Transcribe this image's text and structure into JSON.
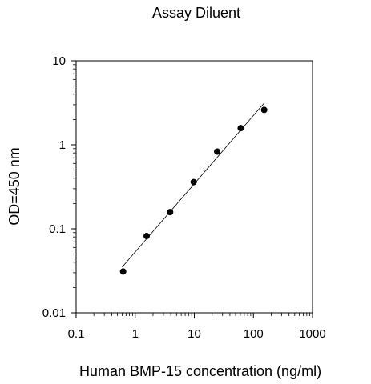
{
  "chart_data": {
    "type": "scatter",
    "title": "Assay Diluent",
    "xlabel": "Human BMP-15 concentration (ng/ml)",
    "ylabel": "OD=450 nm",
    "xscale": "log",
    "yscale": "log",
    "xlim": [
      0.1,
      1000
    ],
    "ylim": [
      0.01,
      10
    ],
    "xticks": [
      0.1,
      1,
      10,
      100,
      1000
    ],
    "yticks": [
      0.01,
      0.1,
      1,
      10
    ],
    "xtick_labels": [
      "0.1",
      "1",
      "10",
      "100",
      "1000"
    ],
    "ytick_labels": [
      "0.01",
      "0.1",
      "1",
      "10"
    ],
    "grid": false,
    "legend": "none",
    "marker_color": "#000000",
    "series": [
      {
        "x": [
          0.625,
          1.56,
          3.9,
          9.75,
          24.4,
          61,
          152
        ],
        "y": [
          0.031,
          0.082,
          0.158,
          0.36,
          0.83,
          1.58,
          2.6
        ]
      }
    ],
    "fit_line": {
      "type": "log-log linear",
      "x": [
        0.6,
        150
      ],
      "y": [
        0.035,
        3.1
      ]
    }
  }
}
